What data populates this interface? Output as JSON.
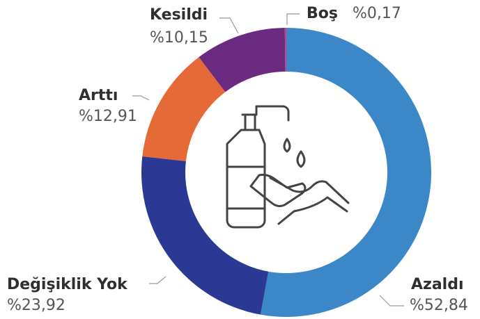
{
  "chart_data": {
    "type": "donut",
    "categories": [
      "Azaldı",
      "Değişiklik Yok",
      "Arttı",
      "Kesildi",
      "Boş"
    ],
    "values": [
      52.84,
      23.92,
      12.91,
      10.15,
      0.17
    ],
    "value_labels": [
      "%52,84",
      "%23,92",
      "%12,91",
      "%10,15",
      "%0,17"
    ],
    "colors": [
      "#3b87c8",
      "#2b3994",
      "#e66a37",
      "#6a2a80",
      "#c2408d"
    ]
  }
}
